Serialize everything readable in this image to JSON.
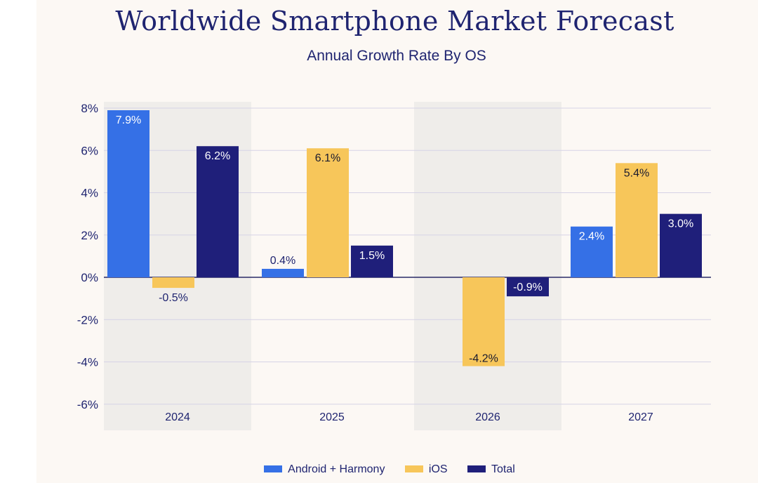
{
  "chart_data": {
    "type": "bar",
    "title": "Worldwide Smartphone Market Forecast",
    "subtitle": "Annual Growth Rate By OS",
    "xlabel": "",
    "ylabel": "",
    "categories": [
      "2024",
      "2025",
      "2026",
      "2027"
    ],
    "series": [
      {
        "name": "Android + Harmony",
        "color": "#3570e6",
        "values": [
          7.9,
          0.4,
          null,
          2.4
        ],
        "labels": [
          "7.9%",
          "0.4%",
          "",
          "2.4%"
        ],
        "label_color": "#ffffff"
      },
      {
        "name": "iOS",
        "color": "#f7c65a",
        "values": [
          -0.5,
          6.1,
          -4.2,
          5.4
        ],
        "labels": [
          "-0.5%",
          "6.1%",
          "-4.2%",
          "5.4%"
        ],
        "label_color": "#1a1a2e"
      },
      {
        "name": "Total",
        "color": "#1f1f7a",
        "values": [
          6.2,
          1.5,
          -0.9,
          3.0
        ],
        "labels": [
          "6.2%",
          "1.5%",
          "-0.9%",
          "3.0%"
        ],
        "label_color": "#ffffff"
      }
    ],
    "ylim": [
      -6,
      8
    ],
    "yticks": [
      8,
      6,
      4,
      2,
      0,
      -2,
      -4,
      -6
    ],
    "ytick_labels": [
      "8%",
      "6%",
      "4%",
      "2%",
      "0%",
      "-2%",
      "-4%",
      "-6%"
    ],
    "grid": true,
    "shaded_categories": [
      "2024",
      "2026"
    ],
    "legend_position": "bottom-center"
  }
}
